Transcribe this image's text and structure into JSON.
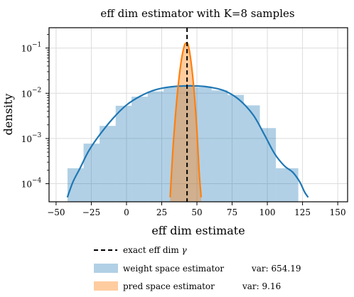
{
  "chart_data": {
    "type": "histogram",
    "title": "eff dim estimator with K=8 samples",
    "xlabel": "eff dim estimate",
    "ylabel": "density",
    "xlim": [
      -55,
      157
    ],
    "ylim_log10": [
      -4.4,
      -0.55
    ],
    "yscale": "log",
    "grid": true,
    "x_ticks": [
      -50,
      -25,
      0,
      25,
      50,
      75,
      100,
      125,
      150
    ],
    "x_tick_labels": [
      "−50",
      "−25",
      "0",
      "25",
      "50",
      "75",
      "100",
      "125",
      "150"
    ],
    "y_ticks_exp": [
      -4,
      -3,
      -2,
      -1
    ],
    "y_tick_labels": [
      "10",
      "10",
      "10",
      "10"
    ],
    "y_tick_exponents": [
      "−4",
      "−3",
      "−2",
      "−1"
    ],
    "exact_line_x": 43,
    "series": [
      {
        "name": "weight space estimator",
        "legend_extra": "var: 654.19",
        "color": "#1f77b4",
        "hist_alpha": 0.35,
        "bins": [
          {
            "x0": -41.9,
            "x1": -30.5,
            "density": 0.00022
          },
          {
            "x0": -30.5,
            "x1": -19.1,
            "density": 0.00077
          },
          {
            "x0": -19.1,
            "x1": -7.7,
            "density": 0.0019
          },
          {
            "x0": -7.7,
            "x1": 3.6,
            "density": 0.0053
          },
          {
            "x0": 3.6,
            "x1": 15.0,
            "density": 0.0084
          },
          {
            "x0": 15.0,
            "x1": 26.4,
            "density": 0.011
          },
          {
            "x0": 26.4,
            "x1": 37.8,
            "density": 0.0135
          },
          {
            "x0": 37.8,
            "x1": 49.2,
            "density": 0.0143
          },
          {
            "x0": 49.2,
            "x1": 60.5,
            "density": 0.0135
          },
          {
            "x0": 60.5,
            "x1": 71.9,
            "density": 0.0116
          },
          {
            "x0": 71.9,
            "x1": 83.3,
            "density": 0.0092
          },
          {
            "x0": 83.3,
            "x1": 94.7,
            "density": 0.0054
          },
          {
            "x0": 94.7,
            "x1": 106.1,
            "density": 0.0017
          },
          {
            "x0": 106.1,
            "x1": 117.4,
            "density": 0.00022
          },
          {
            "x0": 117.4,
            "x1": 122.0,
            "density": 0.00022
          }
        ],
        "kde_x": [
          -42,
          -38,
          -33,
          -27,
          -20,
          -10,
          0,
          10,
          20,
          30,
          40,
          50,
          60,
          70,
          80,
          90,
          98,
          105,
          112,
          118,
          123,
          126.5,
          129
        ],
        "kde_y": [
          5e-05,
          0.00011,
          0.00022,
          0.00052,
          0.0011,
          0.0027,
          0.0055,
          0.0087,
          0.0118,
          0.0137,
          0.0145,
          0.0145,
          0.0135,
          0.0112,
          0.0072,
          0.0033,
          0.0012,
          0.00047,
          0.00025,
          0.00018,
          0.00011,
          6.5e-05,
          5e-05
        ]
      },
      {
        "name": "pred space estimator",
        "legend_extra": "var: 9.16",
        "color": "#ff7f0e",
        "hist_alpha": 0.4,
        "bins": [
          {
            "x0": 31.0,
            "x1": 53.0,
            "density": 0.13,
            "profile": "narrow"
          }
        ],
        "kde_x": [
          31,
          33,
          35,
          37,
          39,
          41,
          42.5,
          44,
          46,
          48,
          50,
          51.5,
          53
        ],
        "kde_y": [
          5e-05,
          0.0006,
          0.004,
          0.018,
          0.055,
          0.11,
          0.13,
          0.11,
          0.045,
          0.011,
          0.0015,
          0.0002,
          5e-05
        ]
      }
    ],
    "legend": [
      {
        "label": "exact eff dim",
        "symbol": "γ",
        "style": "dashed",
        "color": "#000000"
      },
      {
        "label": "weight space estimator",
        "extra": "var: 654.19",
        "style": "patch",
        "color": "#1f77b4"
      },
      {
        "label": "pred space estimator",
        "extra": "var: 9.16",
        "style": "patch",
        "color": "#ff7f0e"
      }
    ],
    "legend_position": "bottom-center"
  }
}
